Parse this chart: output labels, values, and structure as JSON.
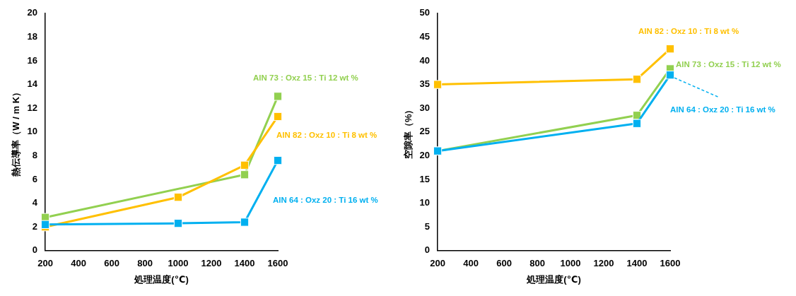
{
  "chart_data": [
    {
      "type": "line",
      "xlabel": "処理温度(℃)",
      "ylabel": "熱伝導率（W / m K）",
      "xlim": [
        200,
        1600
      ],
      "xticks": [
        200,
        400,
        600,
        800,
        1000,
        1200,
        1400,
        1600
      ],
      "ylim": [
        0,
        20
      ],
      "yticks": [
        0,
        2,
        4,
        6,
        8,
        10,
        12,
        14,
        16,
        18,
        20
      ],
      "grid": false,
      "legend": false,
      "marker": "square",
      "line_style": "solid",
      "series": [
        {
          "name": "AlN 73 : Oxz 15 : Ti 12 wt %",
          "color": "#92d050",
          "x": [
            200,
            1400,
            1600
          ],
          "values": [
            2.8,
            6.4,
            13
          ]
        },
        {
          "name": "AlN 82 : Oxz 10 : Ti 8 wt %",
          "color": "#ffc000",
          "x": [
            200,
            1000,
            1400,
            1600
          ],
          "values": [
            2.0,
            4.5,
            7.2,
            11.3
          ]
        },
        {
          "name": "AlN 64 : Oxz 20 : Ti 16 wt %",
          "color": "#00b0f0",
          "x": [
            200,
            1000,
            1400,
            1600
          ],
          "values": [
            2.2,
            2.3,
            2.4,
            7.6
          ]
        }
      ]
    },
    {
      "type": "line",
      "xlabel": "処理温度(℃)",
      "ylabel": "空隙率（%）",
      "xlim": [
        200,
        1600
      ],
      "xticks": [
        200,
        400,
        600,
        800,
        1000,
        1200,
        1400,
        1600
      ],
      "ylim": [
        0,
        50
      ],
      "yticks": [
        0,
        5,
        10,
        15,
        20,
        25,
        30,
        35,
        40,
        45,
        50
      ],
      "grid": false,
      "legend": false,
      "marker": "square",
      "line_style": "solid",
      "series": [
        {
          "name": "AlN 82 : Oxz 10 : Ti 8 wt %",
          "color": "#ffc000",
          "x": [
            200,
            1400,
            1600
          ],
          "values": [
            35,
            36.1,
            42.5
          ]
        },
        {
          "name": "AlN 73 : Oxz 15 : Ti 12 wt %",
          "color": "#92d050",
          "x": [
            200,
            1400,
            1600
          ],
          "values": [
            21,
            28.5,
            38.3
          ]
        },
        {
          "name": "AlN 64 : Oxz 20 : Ti 16 wt %",
          "color": "#00b0f0",
          "x": [
            200,
            1400,
            1600
          ],
          "values": [
            21,
            26.8,
            37
          ]
        }
      ]
    }
  ]
}
